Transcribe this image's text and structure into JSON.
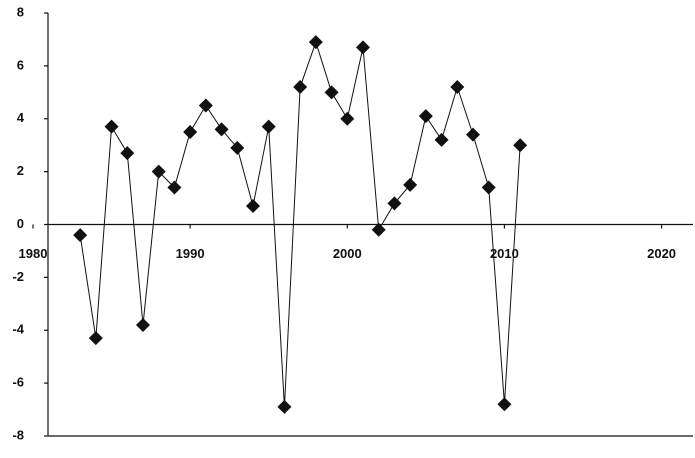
{
  "chart_data": {
    "type": "line",
    "x": [
      1983,
      1984,
      1985,
      1986,
      1987,
      1988,
      1989,
      1990,
      1991,
      1992,
      1993,
      1994,
      1995,
      1996,
      1997,
      1998,
      1999,
      2000,
      2001,
      2002,
      2003,
      2004,
      2005,
      2006,
      2007,
      2008,
      2009,
      2010,
      2011
    ],
    "values": [
      -0.4,
      -4.3,
      3.7,
      2.7,
      -3.8,
      2.0,
      1.4,
      3.5,
      4.5,
      3.6,
      2.9,
      0.7,
      3.7,
      -6.9,
      5.2,
      6.9,
      5.0,
      4.0,
      6.7,
      -0.2,
      0.8,
      1.5,
      4.1,
      3.2,
      5.2,
      3.4,
      1.4,
      -6.8,
      3.0
    ],
    "color": "#111111",
    "xlim": [
      1980,
      2022
    ],
    "xticks": [
      1980,
      1990,
      2000,
      2010,
      2020
    ],
    "ylim": [
      -8,
      8
    ],
    "yticks": [
      -8,
      -6,
      -4,
      -2,
      0,
      2,
      4,
      6,
      8
    ]
  }
}
